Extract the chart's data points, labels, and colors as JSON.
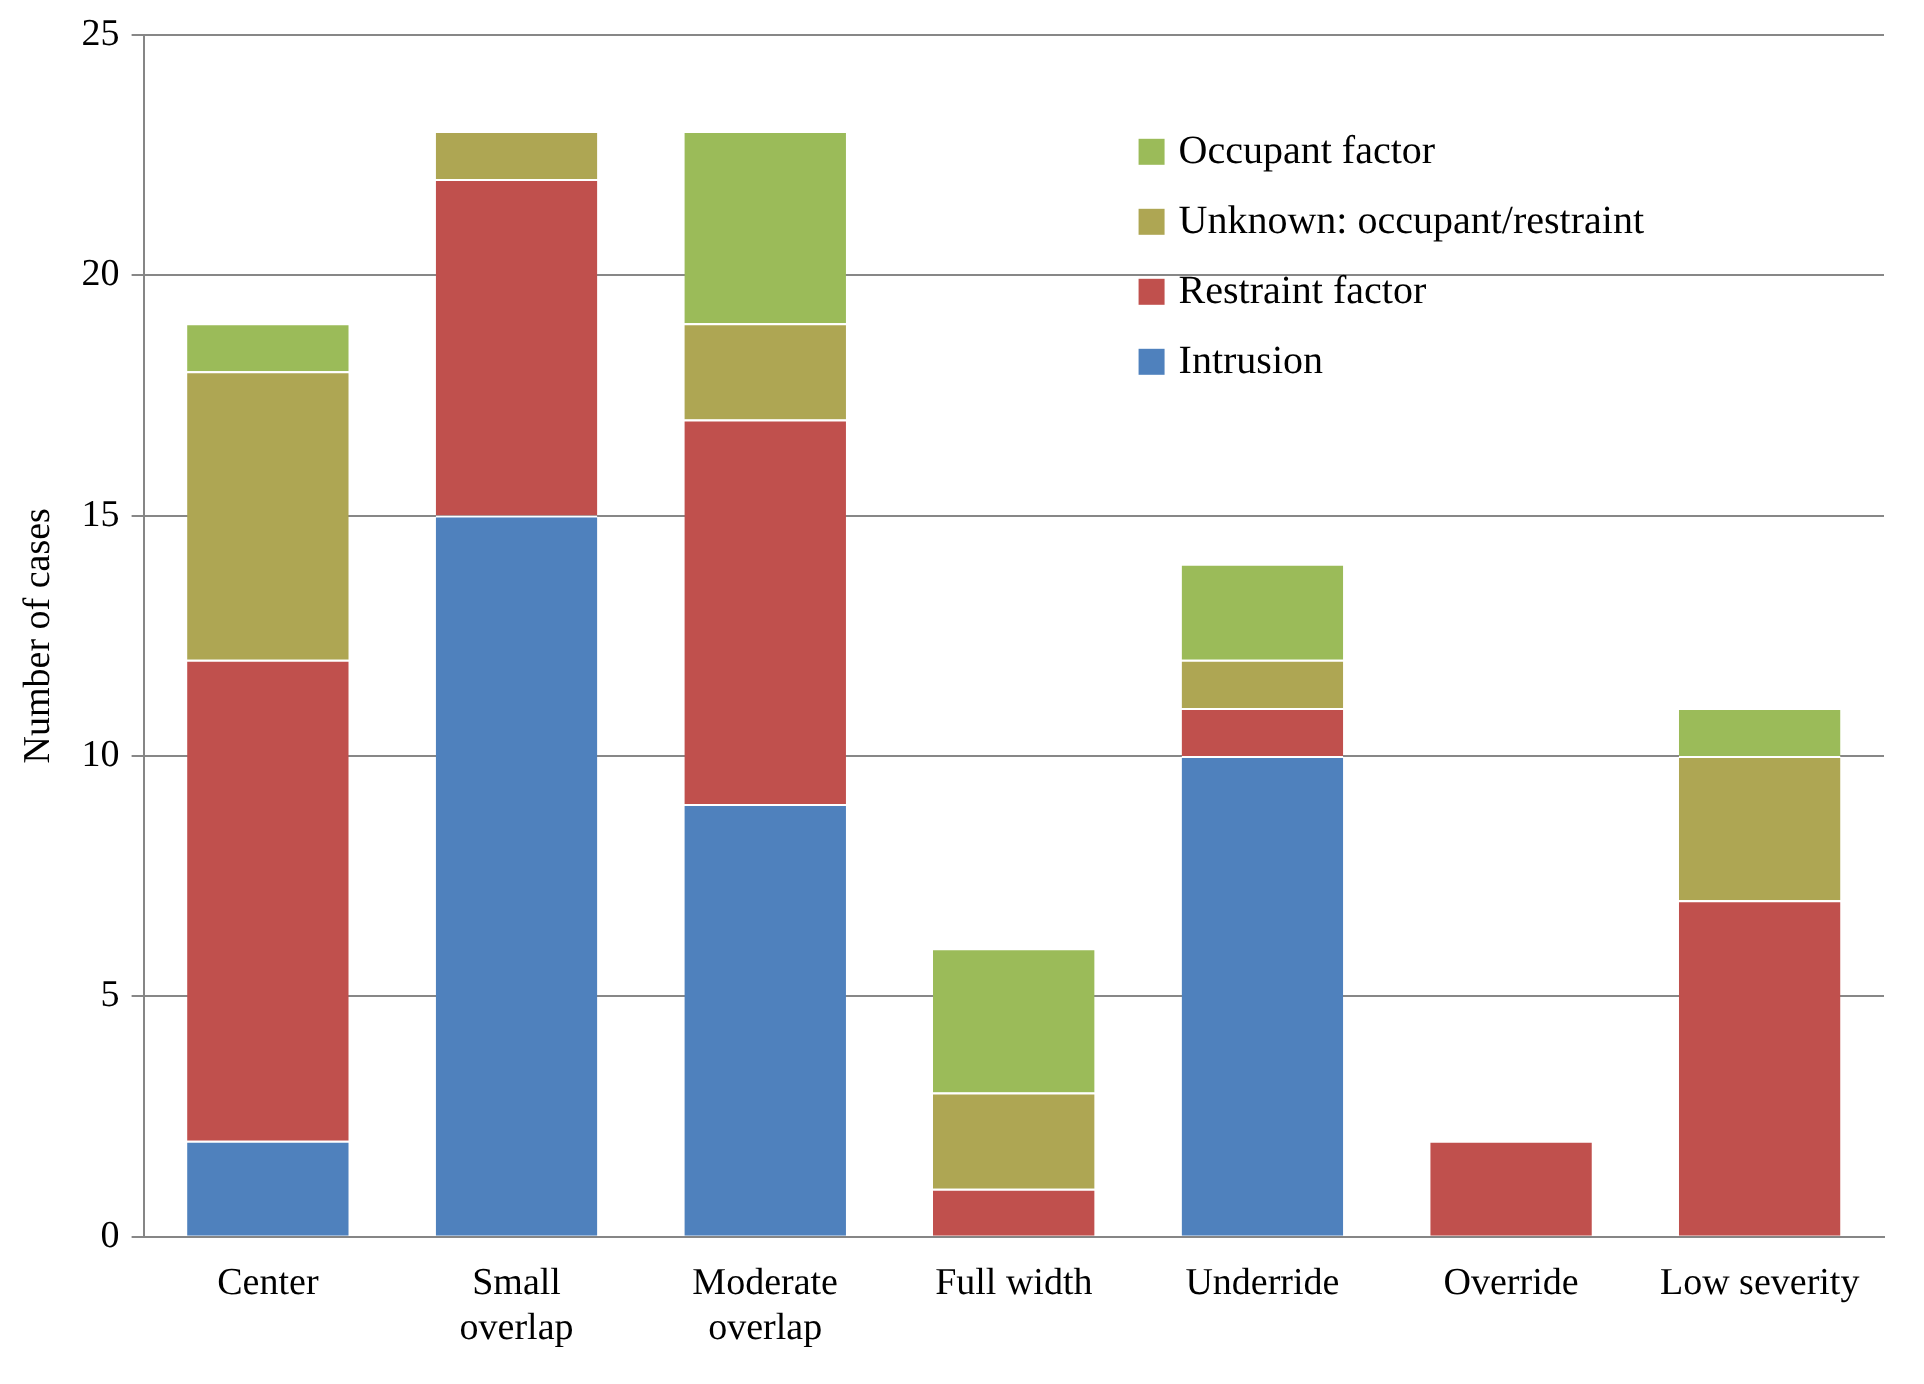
{
  "chart_data": {
    "type": "bar",
    "stacked": true,
    "ylabel": "Number of cases",
    "categories": [
      "Center",
      "Small overlap",
      "Moderate overlap",
      "Full width",
      "Underride",
      "Override",
      "Low severity"
    ],
    "series": [
      {
        "name": "Intrusion",
        "color": "#4f81bd",
        "values": [
          2,
          15,
          9,
          0,
          10,
          0,
          0
        ]
      },
      {
        "name": "Restraint factor",
        "color": "#c0504d",
        "values": [
          10,
          7,
          8,
          1,
          1,
          2,
          7
        ]
      },
      {
        "name": "Unknown: occupant/restraint",
        "color": "#aea653",
        "values": [
          6,
          1,
          2,
          2,
          1,
          0,
          3
        ]
      },
      {
        "name": "Occupant factor",
        "color": "#9bbb59",
        "values": [
          1,
          0,
          4,
          3,
          2,
          0,
          1
        ]
      }
    ],
    "ylim": [
      0,
      25
    ],
    "yticks": [
      0,
      5,
      10,
      15,
      20,
      25
    ],
    "grid": "y",
    "legend": "top right"
  }
}
